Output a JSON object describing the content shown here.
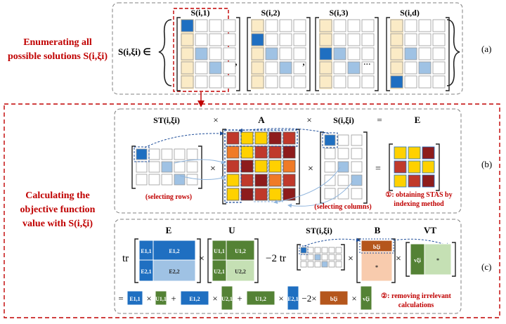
{
  "panel_a": {
    "label": "(a)",
    "left_text": [
      "Enumerating all",
      "possible solutions S(i,ξi)"
    ],
    "set_symbol": "S(i,ξi) ∈",
    "matrix_titles": [
      "S(i,1)",
      "S(i,2)",
      "S(i,3)",
      "S(i,d)"
    ],
    "separators": [
      ",",
      ",",
      "..."
    ]
  },
  "panel_b": {
    "label": "(b)",
    "left_text": [
      "Calculating the",
      "objective function",
      "value with S(i,ξi)"
    ],
    "headers": [
      "ST(i,ξi)",
      "×",
      "A",
      "×",
      "S(i,ξi)",
      "=",
      "E"
    ],
    "ops": [
      "×",
      "×",
      "="
    ],
    "note_rows": "(selecting rows)",
    "note_cols": "(selecting columns)",
    "note_index": [
      "①: obtaining STAS by",
      "indexing method"
    ]
  },
  "panel_c": {
    "label": "(c)",
    "headers": [
      "E",
      "U",
      "ST(i,ξi)",
      "B",
      "VT"
    ],
    "tr": "tr",
    "minus_tr": "−2 tr",
    "e_blocks": [
      "E1,1",
      "E1,2",
      "E2,1",
      "E2,2"
    ],
    "u_blocks": [
      "U1,1",
      "U1,2",
      "U2,1",
      "U2,2"
    ],
    "b_top": "bξi",
    "star": "*",
    "v_block": "vξi",
    "eq_terms": [
      "E1,1",
      "U1,1",
      "E1,2",
      "U2,1",
      "U1,2",
      "E2,1",
      "bξi",
      "vξi"
    ],
    "eq_ops": [
      "=",
      "×",
      "+",
      "×",
      "+",
      "×",
      "−2×",
      "×"
    ],
    "note_remove": [
      "②: removing irrelevant",
      "calculations"
    ]
  },
  "colors": {
    "dark_blue": "#1f6fc1",
    "light_blue": "#9fc2e4",
    "cream": "#fbebc6",
    "yellow": "#ffd100",
    "red": "#c0392b",
    "darkred": "#8e1c1c",
    "orange": "#f07b27",
    "green": "#548235",
    "light_green": "#c5e0b4",
    "brown": "#b5561c",
    "peach": "#f8cbad",
    "accent_red": "#c00000"
  }
}
